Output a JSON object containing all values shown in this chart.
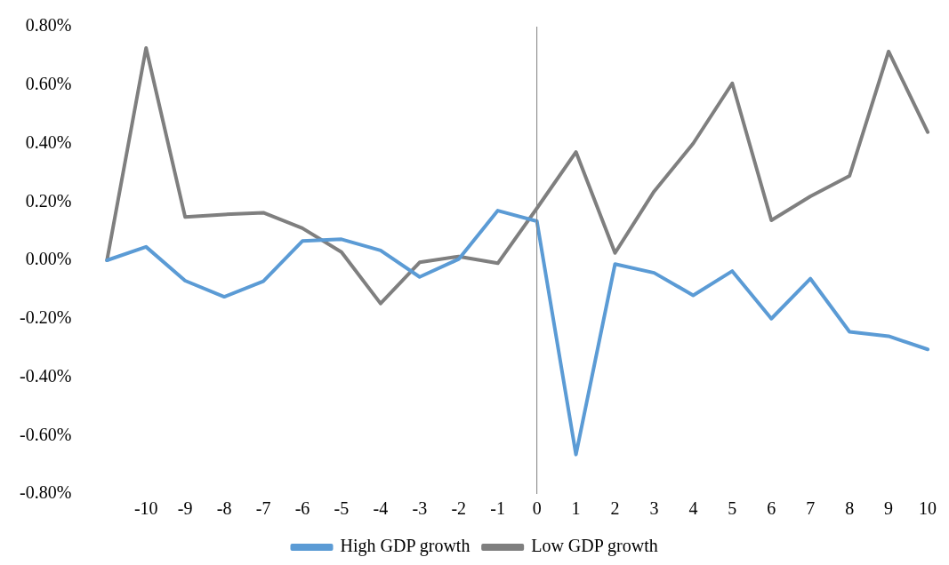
{
  "chart_data": {
    "type": "line",
    "categories": [
      null,
      "-10",
      "-9",
      "-8",
      "-7",
      "-6",
      "-5",
      "-4",
      "-3",
      "-2",
      "-1",
      "0",
      "1",
      "2",
      "3",
      "4",
      "5",
      "6",
      "7",
      "8",
      "9",
      "10"
    ],
    "series": [
      {
        "name": "High GDP growth",
        "color": "#5b9bd5",
        "values": [
          0,
          0.046,
          -0.07,
          -0.125,
          -0.072,
          0.066,
          0.072,
          0.034,
          -0.057,
          0.004,
          0.17,
          0.134,
          -0.665,
          -0.013,
          -0.043,
          -0.12,
          -0.037,
          -0.2,
          -0.063,
          -0.245,
          -0.26,
          -0.305
        ]
      },
      {
        "name": "Low GDP growth",
        "color": "#7f7f7f",
        "values": [
          0,
          0.727,
          0.148,
          0.157,
          0.163,
          0.11,
          0.028,
          -0.148,
          -0.007,
          0.013,
          -0.01,
          0.178,
          0.371,
          0.025,
          0.236,
          0.4,
          0.606,
          0.137,
          0.219,
          0.289,
          0.715,
          0.439
        ]
      }
    ],
    "ylim": [
      -0.8,
      0.8
    ],
    "yticks": [
      {
        "value": -0.8,
        "label": "-0.80%"
      },
      {
        "value": -0.6,
        "label": "-0.60%"
      },
      {
        "value": -0.4,
        "label": "-0.40%"
      },
      {
        "value": -0.2,
        "label": "-0.20%"
      },
      {
        "value": 0,
        "label": "0.00%"
      },
      {
        "value": 0.2,
        "label": "0.20%"
      },
      {
        "value": 0.4,
        "label": "0.40%"
      },
      {
        "value": 0.6,
        "label": "0.60%"
      },
      {
        "value": 0.8,
        "label": "0.80%"
      }
    ],
    "ref_lines": [
      {
        "axis": "x",
        "value": "0",
        "color": "#7f7f7f"
      }
    ],
    "grid": false,
    "legend": "bottom",
    "marker": "none",
    "line_style": "solid"
  }
}
